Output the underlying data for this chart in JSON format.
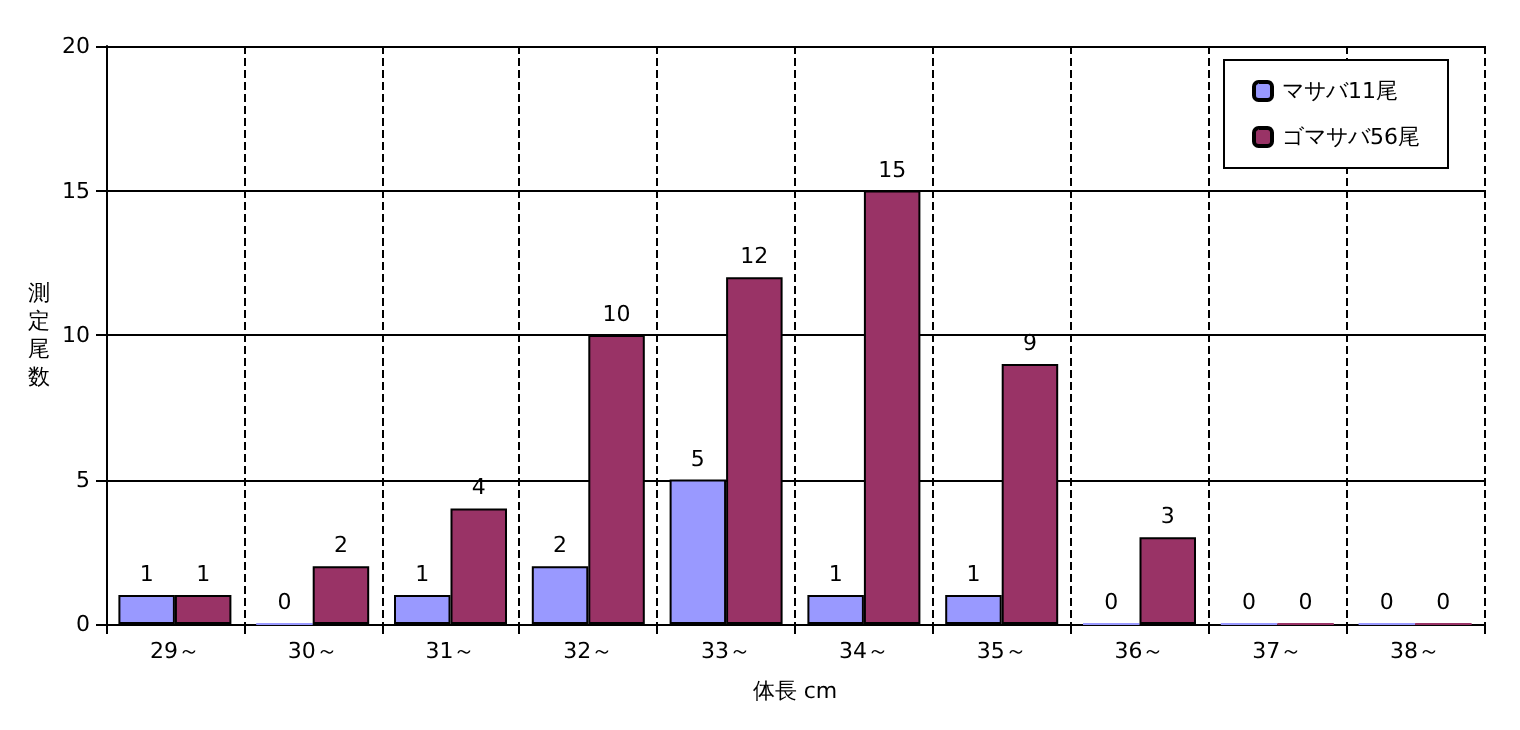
{
  "chart_data": {
    "type": "bar",
    "xlabel": "体長 cm",
    "ylabel": "測定尾数",
    "categories": [
      "29～",
      "30～",
      "31～",
      "32～",
      "33～",
      "34～",
      "35～",
      "36～",
      "37～",
      "38～"
    ],
    "series": [
      {
        "name": "マサバ11尾",
        "color": "#9999ff",
        "values": [
          1,
          0,
          1,
          2,
          5,
          1,
          1,
          0,
          0,
          0
        ]
      },
      {
        "name": "ゴマサバ56尾",
        "color": "#993366",
        "values": [
          1,
          2,
          4,
          10,
          12,
          15,
          9,
          3,
          0,
          0
        ]
      }
    ],
    "ylim": [
      0,
      20
    ],
    "yticks": [
      0,
      5,
      10,
      15,
      20
    ],
    "grid": true,
    "legend": "top right",
    "data_labels": true
  }
}
